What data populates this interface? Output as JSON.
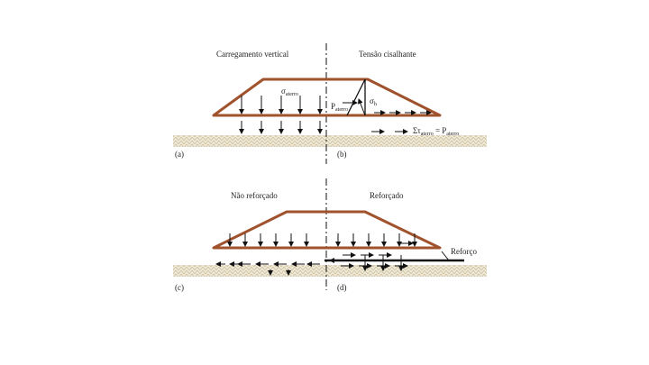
{
  "panels": {
    "top": {
      "left_label": "Carregamento vertical",
      "right_label": "Tensão cisalhante",
      "sigma": {
        "symbol": "σ",
        "subscript": "aterro"
      },
      "p": {
        "symbol": "P",
        "subscript": "aterro"
      },
      "sigma_h": {
        "symbol": "σ",
        "subscript": "h"
      },
      "equation": {
        "lhs": "Στ",
        "lhs_subscript": "aterro",
        "mid": " = P",
        "rhs_subscript": "aterro"
      },
      "tag_a": "(a)",
      "tag_b": "(b)"
    },
    "bottom": {
      "left_label": "Não reforçado",
      "right_label": "Reforçado",
      "reinforcement_label": "Reforço",
      "tag_c": "(c)",
      "tag_d": "(d)"
    }
  }
}
